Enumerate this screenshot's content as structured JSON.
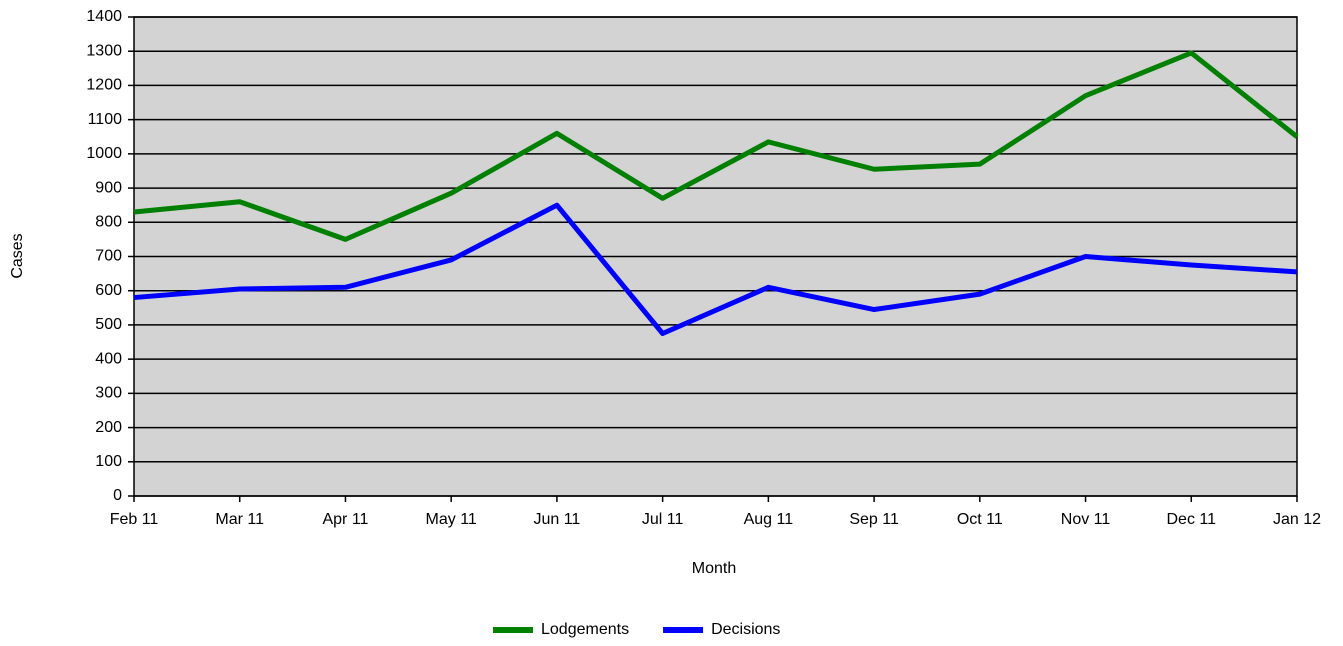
{
  "chart_data": {
    "type": "line",
    "x_label": "Month",
    "y_label": "Cases",
    "categories": [
      "Feb 11",
      "Mar 11",
      "Apr 11",
      "May 11",
      "Jun 11",
      "Jul 11",
      "Aug 11",
      "Sep 11",
      "Oct 11",
      "Nov 11",
      "Dec 11",
      "Jan 12"
    ],
    "series": [
      {
        "name": "Lodgements",
        "color": "#008000",
        "values": [
          830,
          860,
          750,
          885,
          1060,
          870,
          1035,
          955,
          970,
          1170,
          1295,
          1050
        ]
      },
      {
        "name": "Decisions",
        "color": "#0000ff",
        "values": [
          580,
          605,
          610,
          690,
          850,
          475,
          610,
          545,
          590,
          700,
          675,
          655
        ]
      }
    ],
    "ylim": [
      0,
      1400
    ],
    "yticks": [
      0,
      100,
      200,
      300,
      400,
      500,
      600,
      700,
      800,
      900,
      1000,
      1100,
      1200,
      1300,
      1400
    ],
    "grid": true,
    "legend": "bottom",
    "plot_background": "#d3d3d3"
  }
}
